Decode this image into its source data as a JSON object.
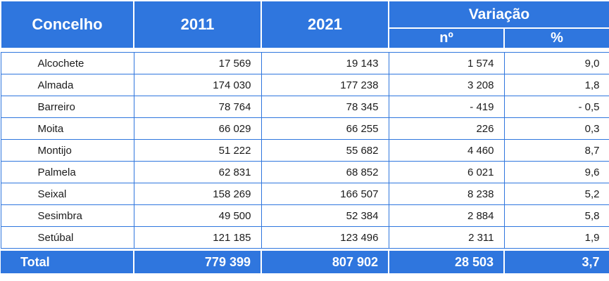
{
  "table": {
    "headers": {
      "concelho": "Concelho",
      "year_a": "2011",
      "year_b": "2021",
      "variacao": "Variação",
      "num": "nº",
      "pct": "%"
    },
    "rows": [
      {
        "name": "Alcochete",
        "y2011": "17 569",
        "y2021": "19 143",
        "num": "1 574",
        "pct": "9,0"
      },
      {
        "name": "Almada",
        "y2011": "174 030",
        "y2021": "177 238",
        "num": "3 208",
        "pct": "1,8"
      },
      {
        "name": "Barreiro",
        "y2011": "78 764",
        "y2021": "78 345",
        "num": "- 419",
        "pct": "- 0,5"
      },
      {
        "name": "Moita",
        "y2011": "66 029",
        "y2021": "66 255",
        "num": "226",
        "pct": "0,3"
      },
      {
        "name": "Montijo",
        "y2011": "51 222",
        "y2021": "55 682",
        "num": "4 460",
        "pct": "8,7"
      },
      {
        "name": "Palmela",
        "y2011": "62 831",
        "y2021": "68 852",
        "num": "6 021",
        "pct": "9,6"
      },
      {
        "name": "Seixal",
        "y2011": "158 269",
        "y2021": "166 507",
        "num": "8 238",
        "pct": "5,2"
      },
      {
        "name": "Sesimbra",
        "y2011": "49 500",
        "y2021": "52 384",
        "num": "2 884",
        "pct": "5,8"
      },
      {
        "name": "Setúbal",
        "y2011": "121 185",
        "y2021": "123 496",
        "num": "2 311",
        "pct": "1,9"
      }
    ],
    "total": {
      "name": "Total",
      "y2011": "779 399",
      "y2021": "807 902",
      "num": "28 503",
      "pct": "3,7"
    }
  },
  "colors": {
    "header_bg": "#2f76de",
    "header_text": "#ffffff",
    "grid": "#2f76de"
  }
}
